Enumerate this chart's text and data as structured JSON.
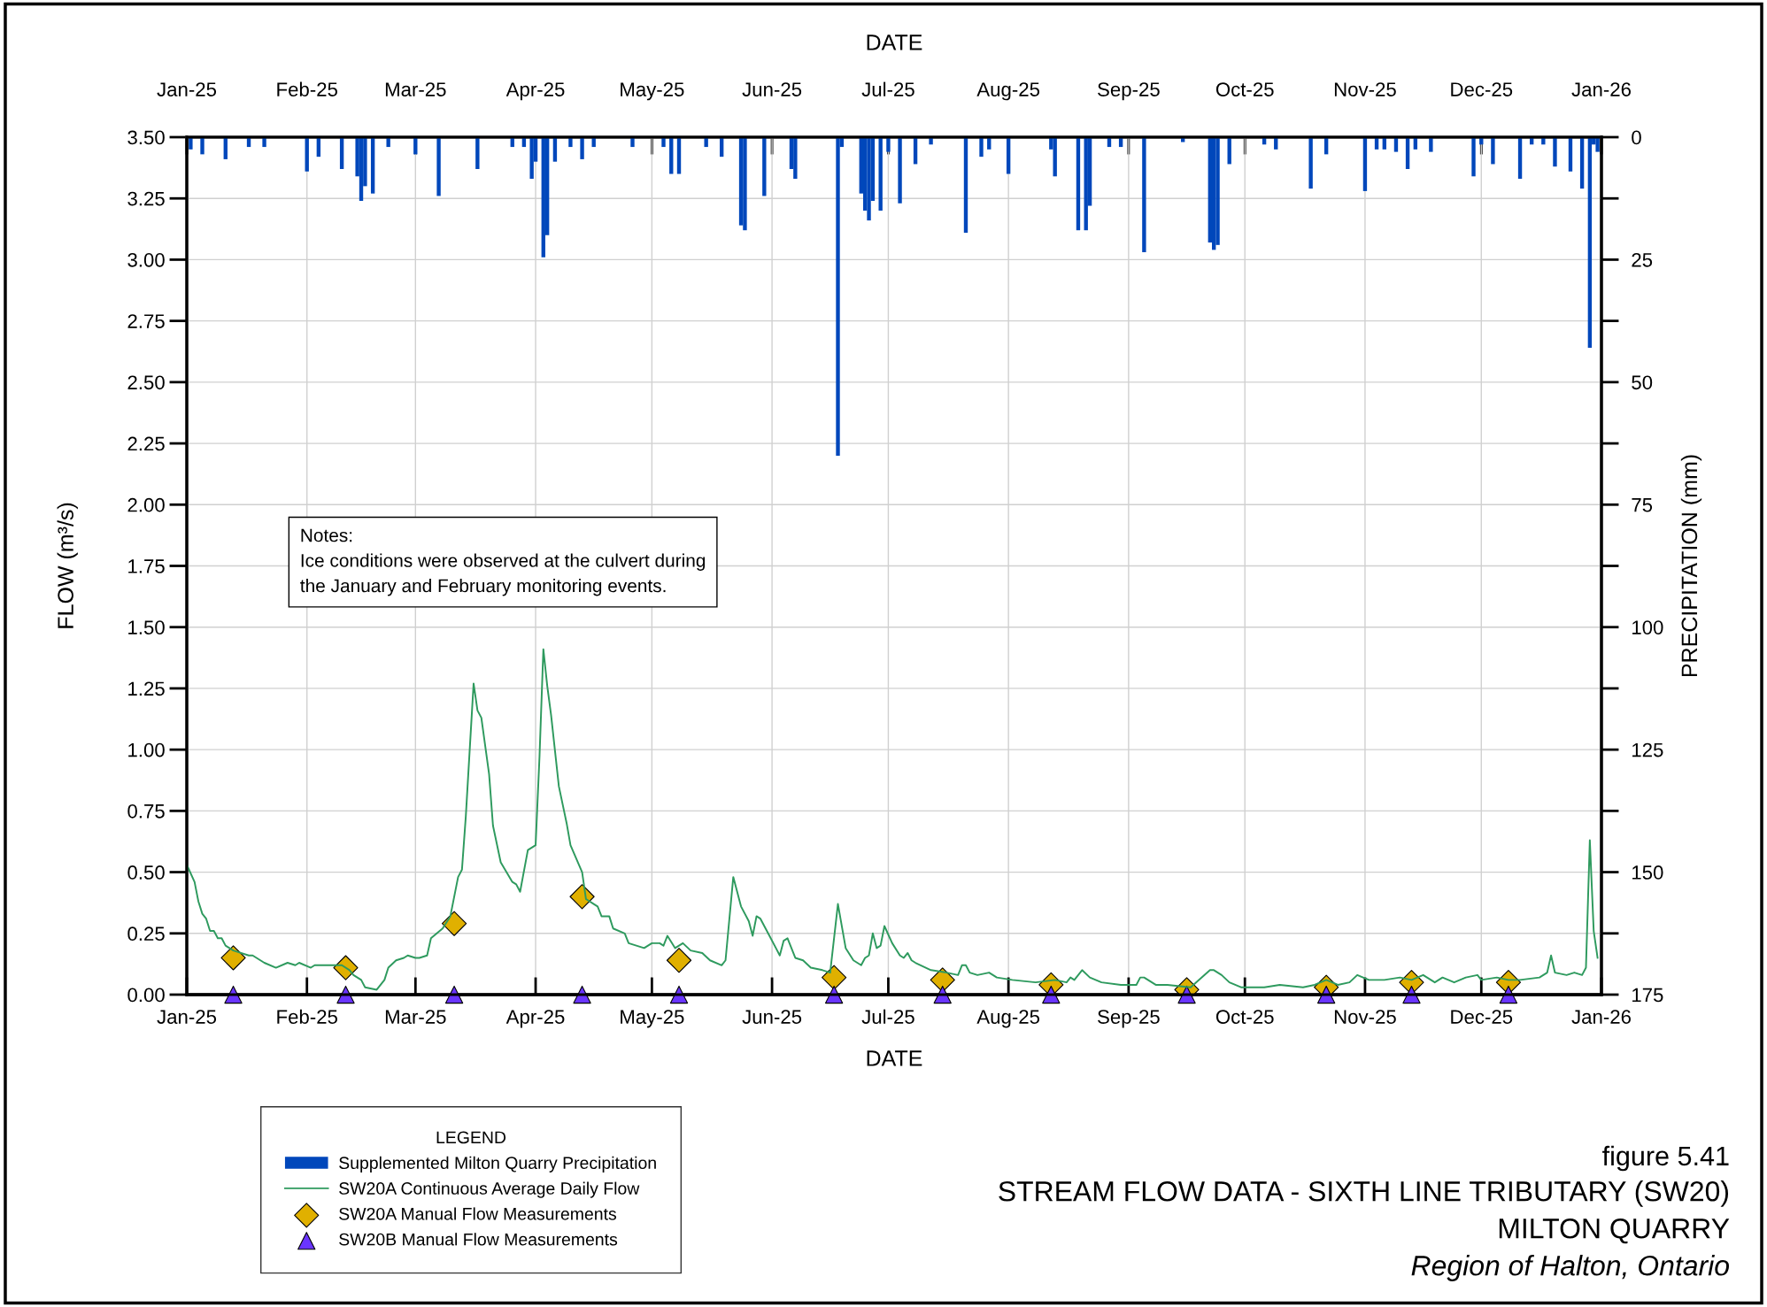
{
  "chart_data": {
    "type": "line",
    "title": "STREAM FLOW DATA - SIXTH LINE TRIBUTARY (SW20)",
    "subtitle": "MILTON QUARRY",
    "xlabel": "DATE",
    "x2label": "DATE",
    "ylabel": "FLOW (m³/s)",
    "y2label": "PRECIPITATION (mm)",
    "legend_title": "LEGEND",
    "legend": "bottom left",
    "grid": true,
    "annotations": [
      "Notes:\nIce conditions were observed at the culvert during\nthe January and February monitoring events.",
      "figure 5.41",
      "Region of Halton, Ontario"
    ],
    "xlim": [
      "2025-01-01",
      "2026-01-01"
    ],
    "xticks": [
      {
        "value": "2025-01-01",
        "label": "Jan-25"
      },
      {
        "value": "2025-02-01",
        "label": "Feb-25"
      },
      {
        "value": "2025-03-01",
        "label": "Mar-25"
      },
      {
        "value": "2025-04-01",
        "label": "Apr-25"
      },
      {
        "value": "2025-05-01",
        "label": "May-25"
      },
      {
        "value": "2025-06-01",
        "label": "Jun-25"
      },
      {
        "value": "2025-07-01",
        "label": "Jul-25"
      },
      {
        "value": "2025-08-01",
        "label": "Aug-25"
      },
      {
        "value": "2025-09-01",
        "label": "Sep-25"
      },
      {
        "value": "2025-10-01",
        "label": "Oct-25"
      },
      {
        "value": "2025-11-01",
        "label": "Nov-25"
      },
      {
        "value": "2025-12-01",
        "label": "Dec-25"
      },
      {
        "value": "2026-01-01",
        "label": "Jan-26"
      }
    ],
    "x2lim": [
      "2025-01-01",
      "2026-01-01"
    ],
    "x2ticks": [
      {
        "value": "2025-01-01",
        "label": "Jan-25"
      },
      {
        "value": "2025-02-01",
        "label": "Feb-25"
      },
      {
        "value": "2025-03-01",
        "label": "Mar-25"
      },
      {
        "value": "2025-04-01",
        "label": "Apr-25"
      },
      {
        "value": "2025-05-01",
        "label": "May-25"
      },
      {
        "value": "2025-06-01",
        "label": "Jun-25"
      },
      {
        "value": "2025-07-01",
        "label": "Jul-25"
      },
      {
        "value": "2025-08-01",
        "label": "Aug-25"
      },
      {
        "value": "2025-09-01",
        "label": "Sep-25"
      },
      {
        "value": "2025-10-01",
        "label": "Oct-25"
      },
      {
        "value": "2025-11-01",
        "label": "Nov-25"
      },
      {
        "value": "2025-12-01",
        "label": "Dec-25"
      },
      {
        "value": "2026-01-01",
        "label": "Jan-26"
      }
    ],
    "ylim": [
      0,
      3.5
    ],
    "yticks": [
      {
        "value": 0,
        "label": "0.00"
      },
      {
        "value": 0.25,
        "label": "0.25"
      },
      {
        "value": 0.5,
        "label": "0.50"
      },
      {
        "value": 0.75,
        "label": "0.75"
      },
      {
        "value": 1,
        "label": "1.00"
      },
      {
        "value": 1.25,
        "label": "1.25"
      },
      {
        "value": 1.5,
        "label": "1.50"
      },
      {
        "value": 1.75,
        "label": "1.75"
      },
      {
        "value": 2,
        "label": "2.00"
      },
      {
        "value": 2.25,
        "label": "2.25"
      },
      {
        "value": 2.5,
        "label": "2.50"
      },
      {
        "value": 2.75,
        "label": "2.75"
      },
      {
        "value": 3,
        "label": "3.00"
      },
      {
        "value": 3.25,
        "label": "3.25"
      },
      {
        "value": 3.5,
        "label": "3.50"
      }
    ],
    "y2lim": [
      175,
      0
    ],
    "y2ticks": [
      0,
      {
        "value": 12.5,
        "label": null
      },
      25,
      {
        "value": 37.5,
        "label": null
      },
      50,
      {
        "value": 62.5,
        "label": null
      },
      75,
      {
        "value": 87.5,
        "label": null
      },
      100,
      {
        "value": 112.5,
        "label": null
      },
      125,
      {
        "value": 137.5,
        "label": null
      },
      150,
      {
        "value": 162.5,
        "label": null
      },
      175
    ],
    "series": [
      {
        "name": "Supplemented Milton Quarry Precipitation",
        "type": "bar",
        "axis": "y2",
        "color": "#0047bb",
        "x": [
          "2025-01-02",
          "2025-01-05",
          "2025-01-11",
          "2025-01-17",
          "2025-01-21",
          "2025-02-01",
          "2025-02-04",
          "2025-02-10",
          "2025-02-14",
          "2025-02-15",
          "2025-02-16",
          "2025-02-18",
          "2025-02-22",
          "2025-03-01",
          "2025-03-07",
          "2025-03-17",
          "2025-03-26",
          "2025-03-29",
          "2025-03-31",
          "2025-04-01",
          "2025-04-03",
          "2025-04-04",
          "2025-04-06",
          "2025-04-10",
          "2025-04-13",
          "2025-04-16",
          "2025-04-26",
          "2025-05-04",
          "2025-05-06",
          "2025-05-08",
          "2025-05-15",
          "2025-05-19",
          "2025-05-24",
          "2025-05-25",
          "2025-05-30",
          "2025-06-06",
          "2025-06-07",
          "2025-06-18",
          "2025-06-19",
          "2025-06-24",
          "2025-06-25",
          "2025-06-26",
          "2025-06-27",
          "2025-06-29",
          "2025-07-01",
          "2025-07-04",
          "2025-07-08",
          "2025-07-12",
          "2025-07-21",
          "2025-07-25",
          "2025-07-27",
          "2025-08-01",
          "2025-08-12",
          "2025-08-13",
          "2025-08-19",
          "2025-08-21",
          "2025-08-22",
          "2025-08-27",
          "2025-08-30",
          "2025-09-05",
          "2025-09-15",
          "2025-09-22",
          "2025-09-23",
          "2025-09-24",
          "2025-09-27",
          "2025-10-06",
          "2025-10-09",
          "2025-10-18",
          "2025-10-22",
          "2025-11-01",
          "2025-11-04",
          "2025-11-06",
          "2025-11-09",
          "2025-11-12",
          "2025-11-14",
          "2025-11-18",
          "2025-11-29",
          "2025-12-01",
          "2025-12-04",
          "2025-12-11",
          "2025-12-14",
          "2025-12-17",
          "2025-12-20",
          "2025-12-24",
          "2025-12-27",
          "2025-12-29",
          "2025-12-30",
          "2025-12-31"
        ],
        "values": [
          2.5,
          3.5,
          4.5,
          2,
          2,
          7,
          4,
          6.5,
          8,
          13,
          10,
          11.5,
          2,
          3.5,
          12,
          6.5,
          2,
          2,
          8.5,
          5,
          24.5,
          20,
          5,
          2,
          4.5,
          2,
          2,
          2,
          7.5,
          7.5,
          2,
          4,
          18,
          19,
          12,
          6.5,
          8.5,
          65,
          2,
          11.5,
          15,
          17,
          13,
          15,
          3,
          13.5,
          5.5,
          1.5,
          19.5,
          4,
          2.5,
          7.5,
          2.5,
          8,
          19,
          19,
          14,
          2,
          2,
          23.5,
          1,
          21.5,
          23,
          22,
          5.5,
          1.5,
          2.5,
          10.5,
          3.5,
          11,
          2.5,
          2.5,
          3,
          6.5,
          2.5,
          3,
          8,
          1.5,
          5.5,
          8.5,
          1.5,
          1.5,
          6,
          7,
          10.5,
          43,
          1.5,
          3
        ]
      },
      {
        "name": "SW20A Continuous Average Daily Flow",
        "color": "#2e9a5e",
        "marker": "none",
        "x": [
          "2025-01-01",
          "2025-01-03",
          "2025-01-04",
          "2025-01-05",
          "2025-01-06",
          "2025-01-07",
          "2025-01-08",
          "2025-01-09",
          "2025-01-10",
          "2025-01-11",
          "2025-01-13",
          "2025-01-17",
          "2025-01-18",
          "2025-01-21",
          "2025-01-24",
          "2025-01-27",
          "2025-01-29",
          "2025-01-30",
          "2025-02-02",
          "2025-02-03",
          "2025-02-05",
          "2025-02-08",
          "2025-02-10",
          "2025-02-12",
          "2025-02-13",
          "2025-02-15",
          "2025-02-16",
          "2025-02-19",
          "2025-02-21",
          "2025-02-22",
          "2025-02-24",
          "2025-02-26",
          "2025-02-27",
          "2025-03-01",
          "2025-03-02",
          "2025-03-04",
          "2025-03-05",
          "2025-03-08",
          "2025-03-10",
          "2025-03-12",
          "2025-03-13",
          "2025-03-14",
          "2025-03-16",
          "2025-03-17",
          "2025-03-18",
          "2025-03-20",
          "2025-03-21",
          "2025-03-23",
          "2025-03-26",
          "2025-03-27",
          "2025-03-28",
          "2025-03-30",
          "2025-04-01",
          "2025-04-02",
          "2025-04-03",
          "2025-04-04",
          "2025-04-05",
          "2025-04-07",
          "2025-04-09",
          "2025-04-10",
          "2025-04-13",
          "2025-04-14",
          "2025-04-16",
          "2025-04-17",
          "2025-04-18",
          "2025-04-20",
          "2025-04-21",
          "2025-04-24",
          "2025-04-25",
          "2025-04-27",
          "2025-04-29",
          "2025-05-01",
          "2025-05-03",
          "2025-05-04",
          "2025-05-05",
          "2025-05-07",
          "2025-05-09",
          "2025-05-11",
          "2025-05-14",
          "2025-05-16",
          "2025-05-19",
          "2025-05-20",
          "2025-05-22",
          "2025-05-24",
          "2025-05-26",
          "2025-05-27",
          "2025-05-28",
          "2025-05-29",
          "2025-05-31",
          "2025-06-02",
          "2025-06-03",
          "2025-06-04",
          "2025-06-05",
          "2025-06-07",
          "2025-06-09",
          "2025-06-11",
          "2025-06-14",
          "2025-06-16",
          "2025-06-18",
          "2025-06-20",
          "2025-06-22",
          "2025-06-24",
          "2025-06-25",
          "2025-06-26",
          "2025-06-27",
          "2025-06-28",
          "2025-06-29",
          "2025-06-30",
          "2025-07-02",
          "2025-07-04",
          "2025-07-05",
          "2025-07-06",
          "2025-07-07",
          "2025-07-08",
          "2025-07-12",
          "2025-07-16",
          "2025-07-19",
          "2025-07-20",
          "2025-07-21",
          "2025-07-22",
          "2025-07-24",
          "2025-07-27",
          "2025-07-29",
          "2025-08-02",
          "2025-08-08",
          "2025-08-13",
          "2025-08-16",
          "2025-08-17",
          "2025-08-18",
          "2025-08-20",
          "2025-08-22",
          "2025-08-25",
          "2025-08-30",
          "2025-09-03",
          "2025-09-04",
          "2025-09-05",
          "2025-09-08",
          "2025-09-11",
          "2025-09-17",
          "2025-09-22",
          "2025-09-23",
          "2025-09-25",
          "2025-09-27",
          "2025-09-30",
          "2025-10-06",
          "2025-10-10",
          "2025-10-16",
          "2025-10-19",
          "2025-10-22",
          "2025-10-25",
          "2025-10-28",
          "2025-10-30",
          "2025-11-02",
          "2025-11-06",
          "2025-11-10",
          "2025-11-13",
          "2025-11-16",
          "2025-11-19",
          "2025-11-21",
          "2025-11-24",
          "2025-11-27",
          "2025-11-30",
          "2025-12-01",
          "2025-12-05",
          "2025-12-08",
          "2025-12-11",
          "2025-12-16",
          "2025-12-18",
          "2025-12-19",
          "2025-12-20",
          "2025-12-23",
          "2025-12-25",
          "2025-12-27",
          "2025-12-28",
          "2025-12-29",
          "2025-12-30",
          "2025-12-31"
        ],
        "values": [
          0.53,
          0.46,
          0.38,
          0.33,
          0.31,
          0.26,
          0.26,
          0.23,
          0.23,
          0.2,
          0.18,
          0.16,
          0.16,
          0.13,
          0.11,
          0.13,
          0.12,
          0.13,
          0.11,
          0.12,
          0.12,
          0.12,
          0.12,
          0.1,
          0.08,
          0.06,
          0.03,
          0.02,
          0.06,
          0.11,
          0.14,
          0.15,
          0.16,
          0.15,
          0.15,
          0.16,
          0.23,
          0.27,
          0.32,
          0.48,
          0.51,
          0.73,
          1.27,
          1.16,
          1.13,
          0.9,
          0.69,
          0.54,
          0.46,
          0.45,
          0.42,
          0.59,
          0.61,
          0.97,
          1.41,
          1.26,
          1.14,
          0.85,
          0.7,
          0.61,
          0.5,
          0.39,
          0.37,
          0.36,
          0.32,
          0.32,
          0.27,
          0.25,
          0.21,
          0.2,
          0.19,
          0.21,
          0.21,
          0.2,
          0.24,
          0.19,
          0.21,
          0.18,
          0.17,
          0.14,
          0.12,
          0.14,
          0.48,
          0.36,
          0.3,
          0.24,
          0.32,
          0.31,
          0.25,
          0.19,
          0.16,
          0.22,
          0.23,
          0.15,
          0.14,
          0.11,
          0.1,
          0.09,
          0.37,
          0.19,
          0.14,
          0.12,
          0.15,
          0.16,
          0.25,
          0.19,
          0.2,
          0.28,
          0.21,
          0.16,
          0.15,
          0.17,
          0.14,
          0.13,
          0.1,
          0.09,
          0.08,
          0.12,
          0.12,
          0.09,
          0.08,
          0.09,
          0.07,
          0.06,
          0.05,
          0.06,
          0.05,
          0.07,
          0.06,
          0.1,
          0.07,
          0.05,
          0.04,
          0.04,
          0.07,
          0.07,
          0.04,
          0.04,
          0.03,
          0.1,
          0.1,
          0.08,
          0.05,
          0.03,
          0.03,
          0.04,
          0.03,
          0.04,
          0.06,
          0.04,
          0.05,
          0.08,
          0.06,
          0.06,
          0.07,
          0.06,
          0.08,
          0.05,
          0.07,
          0.05,
          0.07,
          0.08,
          0.06,
          0.07,
          0.06,
          0.06,
          0.07,
          0.09,
          0.16,
          0.09,
          0.08,
          0.09,
          0.08,
          0.11,
          0.63,
          0.26,
          0.15
        ]
      },
      {
        "name": "SW20A Manual Flow Measurements",
        "type": "scatter",
        "color": "#e0b000",
        "marker": "diamond",
        "x": [
          "2025-01-13",
          "2025-02-11",
          "2025-03-11",
          "2025-04-13",
          "2025-05-08",
          "2025-06-17",
          "2025-07-15",
          "2025-08-12",
          "2025-09-16",
          "2025-10-22",
          "2025-11-13",
          "2025-12-08"
        ],
        "values": [
          0.15,
          0.11,
          0.29,
          0.4,
          0.14,
          0.07,
          0.06,
          0.04,
          0.02,
          0.03,
          0.05,
          0.05
        ]
      },
      {
        "name": "SW20B Manual Flow Measurements",
        "type": "scatter",
        "color": "#6a35ff",
        "marker": "triangle",
        "x": [
          "2025-01-13",
          "2025-02-11",
          "2025-03-11",
          "2025-04-13",
          "2025-05-08",
          "2025-06-17",
          "2025-07-15",
          "2025-08-12",
          "2025-09-16",
          "2025-10-22",
          "2025-11-13",
          "2025-12-08"
        ],
        "values": [
          0,
          0,
          0,
          0,
          0,
          0,
          0,
          0,
          0,
          0,
          0,
          0
        ]
      }
    ]
  }
}
